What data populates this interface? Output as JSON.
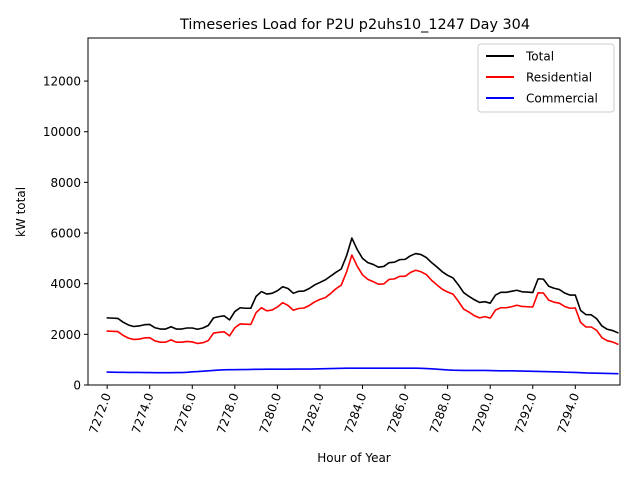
{
  "chart_data": {
    "type": "line",
    "title": "Timeseries Load for P2U p2uhs10_1247  Day 304",
    "xlabel": "Hour of Year",
    "ylabel": "kW total",
    "xlim": [
      7271.1,
      7296.1
    ],
    "ylim": [
      0,
      13700
    ],
    "xticks": [
      7272,
      7274,
      7276,
      7278,
      7280,
      7282,
      7284,
      7286,
      7288,
      7290,
      7292,
      7294
    ],
    "xtick_labels": [
      "7272.0",
      "7274.0",
      "7276.0",
      "7278.0",
      "7280.0",
      "7282.0",
      "7284.0",
      "7286.0",
      "7288.0",
      "7290.0",
      "7292.0",
      "7294.0"
    ],
    "yticks": [
      0,
      2000,
      4000,
      6000,
      8000,
      10000,
      12000
    ],
    "ytick_labels": [
      "0",
      "2000",
      "4000",
      "6000",
      "8000",
      "10000",
      "12000"
    ],
    "legend_position": "top-right",
    "x_start": 7272,
    "x_step": 0.25,
    "series": [
      {
        "name": "Total",
        "color": "#000000",
        "values": [
          2650,
          2640,
          2630,
          2480,
          2370,
          2310,
          2330,
          2380,
          2390,
          2260,
          2210,
          2210,
          2300,
          2210,
          2210,
          2250,
          2250,
          2200,
          2250,
          2350,
          2650,
          2700,
          2730,
          2570,
          2900,
          3050,
          3030,
          3030,
          3500,
          3690,
          3590,
          3620,
          3720,
          3880,
          3810,
          3620,
          3700,
          3710,
          3810,
          3950,
          4050,
          4150,
          4300,
          4450,
          4580,
          5100,
          5800,
          5350,
          5000,
          4830,
          4760,
          4650,
          4680,
          4830,
          4850,
          4950,
          4960,
          5100,
          5190,
          5150,
          5030,
          4830,
          4660,
          4470,
          4330,
          4230,
          3960,
          3650,
          3500,
          3370,
          3260,
          3290,
          3230,
          3550,
          3660,
          3660,
          3700,
          3740,
          3680,
          3670,
          3650,
          4190,
          4180,
          3900,
          3820,
          3770,
          3630,
          3550,
          3550,
          2940,
          2780,
          2770,
          2620,
          2330,
          2200,
          2150,
          2060
        ]
      },
      {
        "name": "Residential",
        "color": "#ff0000",
        "values": [
          2130,
          2120,
          2110,
          1960,
          1850,
          1800,
          1810,
          1860,
          1870,
          1740,
          1690,
          1690,
          1780,
          1690,
          1690,
          1720,
          1700,
          1640,
          1670,
          1750,
          2050,
          2080,
          2100,
          1940,
          2260,
          2410,
          2400,
          2390,
          2860,
          3050,
          2930,
          2960,
          3080,
          3250,
          3140,
          2950,
          3020,
          3040,
          3140,
          3280,
          3380,
          3450,
          3610,
          3800,
          3940,
          4460,
          5130,
          4690,
          4350,
          4170,
          4080,
          3980,
          3990,
          4170,
          4190,
          4290,
          4290,
          4440,
          4530,
          4470,
          4360,
          4130,
          3950,
          3780,
          3670,
          3590,
          3310,
          3000,
          2880,
          2740,
          2650,
          2700,
          2640,
          2960,
          3050,
          3050,
          3090,
          3150,
          3100,
          3090,
          3080,
          3640,
          3630,
          3350,
          3270,
          3230,
          3100,
          3030,
          3040,
          2470,
          2290,
          2290,
          2160,
          1870,
          1750,
          1700,
          1610
        ]
      },
      {
        "name": "Commercial",
        "color": "#0000ff",
        "values": [
          510,
          505,
          500,
          500,
          495,
          495,
          495,
          490,
          490,
          485,
          485,
          485,
          485,
          490,
          490,
          500,
          520,
          530,
          545,
          560,
          575,
          590,
          600,
          605,
          605,
          610,
          610,
          615,
          620,
          620,
          625,
          625,
          625,
          625,
          625,
          630,
          630,
          630,
          630,
          635,
          640,
          645,
          650,
          655,
          660,
          665,
          665,
          665,
          665,
          665,
          665,
          665,
          665,
          665,
          665,
          665,
          665,
          665,
          665,
          660,
          650,
          640,
          625,
          610,
          595,
          585,
          580,
          575,
          575,
          575,
          575,
          575,
          570,
          565,
          560,
          560,
          560,
          555,
          550,
          545,
          540,
          535,
          530,
          525,
          520,
          515,
          505,
          500,
          495,
          485,
          475,
          470,
          465,
          460,
          455,
          450,
          445
        ]
      }
    ]
  }
}
